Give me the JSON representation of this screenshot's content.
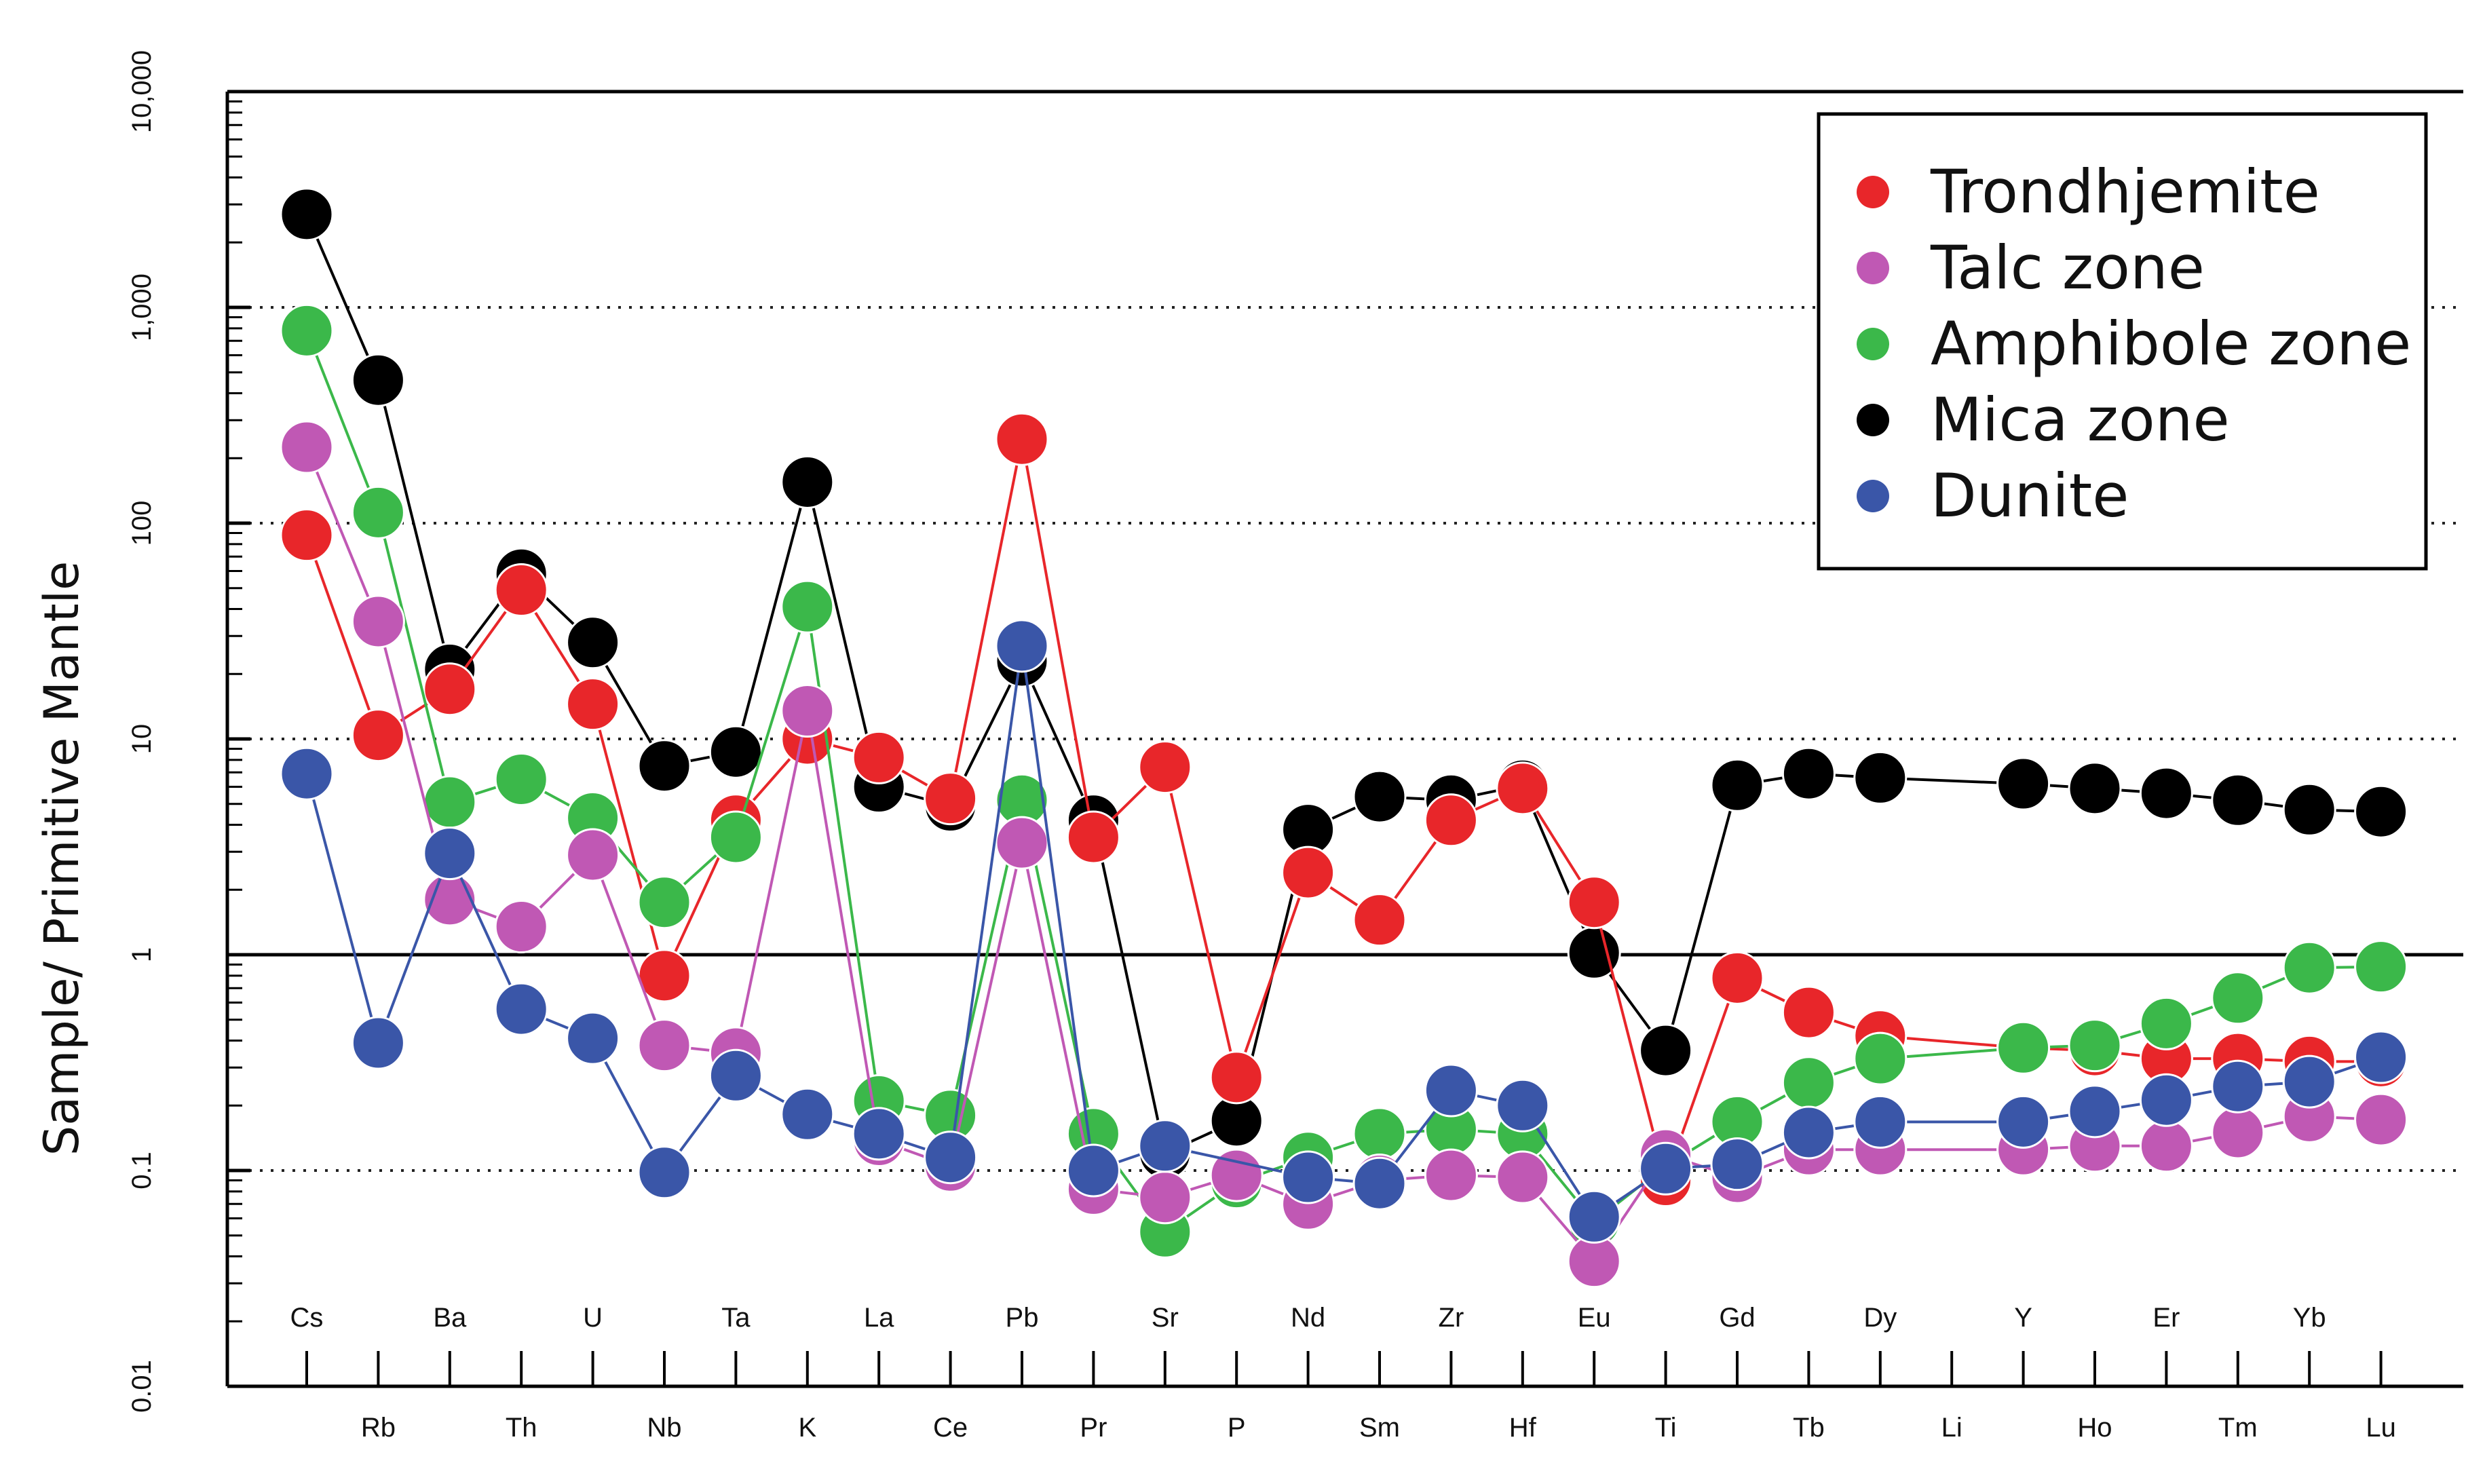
{
  "chart_data": {
    "type": "line",
    "yscale": "log",
    "ylim": [
      0.01,
      10000
    ],
    "ylabel": "Sample/ Primitive Mantle",
    "y_ticks": [
      "0.01",
      "0.1",
      "1",
      "10",
      "100",
      "1,000",
      "10,000"
    ],
    "categories": [
      "Cs",
      "Rb",
      "Ba",
      "Th",
      "U",
      "Nb",
      "Ta",
      "K",
      "La",
      "Ce",
      "Pb",
      "Pr",
      "Sr",
      "P",
      "Nd",
      "Sm",
      "Zr",
      "Hf",
      "Eu",
      "Ti",
      "Gd",
      "Tb",
      "Dy",
      "Li",
      "Y",
      "Ho",
      "Er",
      "Tm",
      "Yb",
      "Lu"
    ],
    "grid": "dotted horizontal at 0.1, 10, 100, 1000; solid reference line at 1",
    "legend_position": "top-right",
    "series": [
      {
        "name": "Mica zone",
        "color": "#000000",
        "values": [
          2700,
          460,
          21,
          58,
          28,
          7.5,
          8.7,
          155,
          6.0,
          4.9,
          23,
          4.2,
          0.12,
          0.17,
          3.8,
          5.4,
          5.2,
          6.1,
          1.02,
          0.36,
          6.1,
          6.9,
          6.6,
          null,
          6.2,
          5.9,
          5.6,
          5.2,
          4.7,
          4.6
        ]
      },
      {
        "name": "Trondhjemite",
        "color": "#e8262a",
        "values": [
          88,
          10.4,
          17,
          49,
          14.5,
          0.8,
          4.2,
          10,
          8.2,
          5.3,
          245,
          3.5,
          7.4,
          0.27,
          2.4,
          1.45,
          4.2,
          5.9,
          1.75,
          0.09,
          0.78,
          0.54,
          0.42,
          null,
          0.37,
          0.36,
          0.33,
          0.33,
          0.32,
          0.32
        ]
      },
      {
        "name": "Amphibole zone",
        "color": "#3bb84a",
        "values": [
          780,
          112,
          5.1,
          6.5,
          4.3,
          1.75,
          3.5,
          41,
          0.21,
          0.18,
          5.2,
          0.148,
          0.052,
          0.088,
          0.115,
          0.148,
          0.155,
          0.148,
          0.058,
          0.105,
          0.168,
          0.255,
          0.33,
          null,
          0.37,
          0.38,
          0.48,
          0.63,
          0.87,
          0.88
        ]
      },
      {
        "name": "Talc zone",
        "color": "#c058b4",
        "values": [
          225,
          35,
          1.8,
          1.35,
          2.9,
          0.38,
          0.35,
          13.5,
          0.138,
          0.105,
          3.3,
          0.082,
          0.075,
          0.095,
          0.07,
          0.09,
          0.095,
          0.093,
          0.038,
          0.118,
          0.093,
          0.125,
          0.125,
          null,
          0.125,
          0.13,
          0.13,
          0.15,
          0.178,
          0.172
        ]
      },
      {
        "name": "Dunite",
        "color": "#3a56a8",
        "values": [
          6.9,
          0.39,
          2.95,
          0.56,
          0.41,
          0.098,
          0.275,
          0.182,
          0.148,
          0.115,
          27,
          0.1,
          0.13,
          null,
          0.093,
          0.087,
          0.235,
          0.2,
          0.061,
          0.102,
          0.107,
          0.15,
          0.168,
          null,
          0.168,
          0.188,
          0.212,
          0.245,
          0.258,
          0.335
        ]
      }
    ]
  },
  "legend_order": [
    "Trondhjemite",
    "Talc zone",
    "Amphibole zone",
    "Mica zone",
    "Dunite"
  ]
}
